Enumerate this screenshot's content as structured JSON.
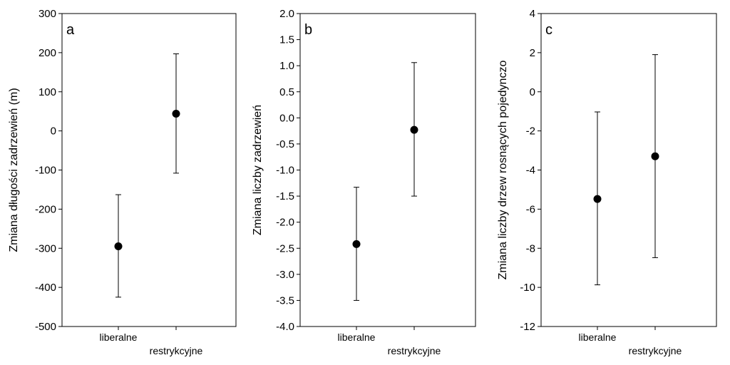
{
  "chart_data": [
    {
      "type": "scatter",
      "panel_letter": "a",
      "ylabel": "Zmiana długości zadrzewień (m)",
      "categories": [
        "liberalne",
        "restrykcyjne"
      ],
      "values": [
        -295,
        44
      ],
      "error_low": [
        -425,
        -108
      ],
      "error_high": [
        -163,
        197
      ],
      "ylim": [
        -500,
        300
      ],
      "yticks": [
        300,
        200,
        100,
        0,
        -100,
        -200,
        -300,
        -400,
        -500
      ],
      "ytick_labels": [
        "300",
        "200",
        "100",
        "0",
        "-100",
        "-200",
        "-300",
        "-400",
        "-500"
      ],
      "grid": false
    },
    {
      "type": "scatter",
      "panel_letter": "b",
      "ylabel": "Zmiana liczby zadrzewień",
      "categories": [
        "liberalne",
        "restrykcyjne"
      ],
      "values": [
        -2.42,
        -0.23
      ],
      "error_low": [
        -3.5,
        -1.5
      ],
      "error_high": [
        -1.33,
        1.06
      ],
      "ylim": [
        -4.0,
        2.0
      ],
      "yticks": [
        2.0,
        1.5,
        1.0,
        0.5,
        0.0,
        -0.5,
        -1.0,
        -1.5,
        -2.0,
        -2.5,
        -3.0,
        -3.5,
        -4.0
      ],
      "ytick_labels": [
        "2.0",
        "1.5",
        "1.0",
        "0.5",
        "0.0",
        "-0.5",
        "-1.0",
        "-1.5",
        "-2.0",
        "-2.5",
        "-3.0",
        "-3.5",
        "-4.0"
      ],
      "grid": false
    },
    {
      "type": "scatter",
      "panel_letter": "c",
      "ylabel": "Zmiana liczby drzew rosnących pojedynczo",
      "categories": [
        "liberalne",
        "restrykcyjne"
      ],
      "values": [
        -5.48,
        -3.3
      ],
      "error_low": [
        -9.87,
        -8.48
      ],
      "error_high": [
        -1.03,
        1.9
      ],
      "ylim": [
        -12,
        4
      ],
      "yticks": [
        4,
        2,
        0,
        -2,
        -4,
        -6,
        -8,
        -10,
        -12
      ],
      "ytick_labels": [
        "4",
        "2",
        "0",
        "-2",
        "-4",
        "-6",
        "-8",
        "-10",
        "-12"
      ],
      "grid": false
    }
  ]
}
